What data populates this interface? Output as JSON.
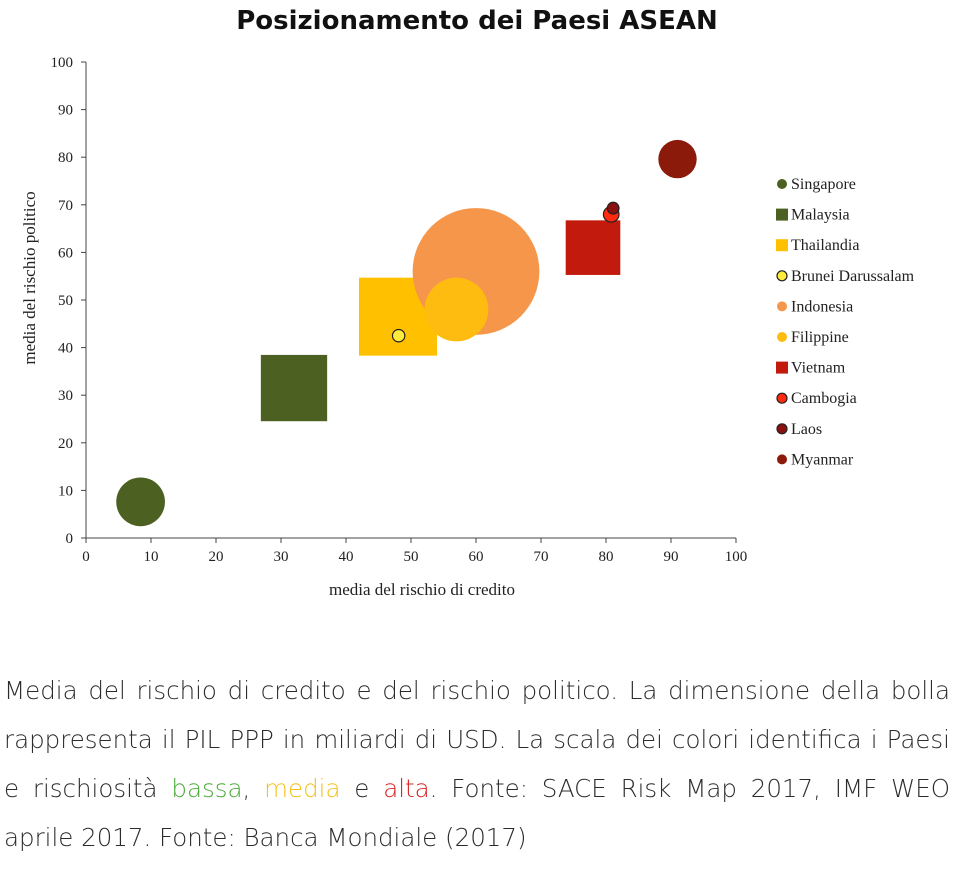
{
  "chart_data": {
    "type": "scatter",
    "title": "Posizionamento dei Paesi ASEAN",
    "xlabel": "media del rischio di credito",
    "ylabel": "media del rischio politico",
    "xlim": [
      0,
      100
    ],
    "ylim": [
      0,
      100
    ],
    "xticks": [
      "0",
      "10",
      "20",
      "30",
      "40",
      "50",
      "60",
      "70",
      "80",
      "90",
      "100"
    ],
    "yticks": [
      "0",
      "10",
      "20",
      "30",
      "40",
      "50",
      "60",
      "70",
      "80",
      "90",
      "100"
    ],
    "legend_position": "right",
    "series": [
      {
        "name": "Singapore",
        "x": 8.4,
        "y": 7.6,
        "size": 0.075,
        "shape": "circle",
        "color": "#4c6121"
      },
      {
        "name": "Malaysia",
        "x": 32,
        "y": 31.5,
        "size": 0.102,
        "shape": "square",
        "color": "#4c6121"
      },
      {
        "name": "Thailandia",
        "x": 48,
        "y": 46.5,
        "size": 0.12,
        "shape": "square",
        "color": "#ffc000"
      },
      {
        "name": "Brunei Darussalam",
        "x": 48.1,
        "y": 42.5,
        "size": 0.019,
        "shape": "circle",
        "color": "#ffeb3b"
      },
      {
        "name": "Indonesia",
        "x": 60,
        "y": 56,
        "size": 0.195,
        "shape": "circle",
        "color": "#f5964a"
      },
      {
        "name": "Filippine",
        "x": 57,
        "y": 48,
        "size": 0.098,
        "shape": "circle",
        "color": "#ffbc10"
      },
      {
        "name": "Vietnam",
        "x": 78,
        "y": 61,
        "size": 0.084,
        "shape": "square",
        "color": "#c21a0c"
      },
      {
        "name": "Cambogia",
        "x": 80.8,
        "y": 68,
        "size": 0.024,
        "shape": "circle",
        "color": "#ff2a10"
      },
      {
        "name": "Laos",
        "x": 81.1,
        "y": 69.3,
        "size": 0.018,
        "shape": "circle",
        "color": "#8b1010"
      },
      {
        "name": "Myanmar",
        "x": 91,
        "y": 79.6,
        "size": 0.059,
        "shape": "circle",
        "color": "#8b1a0a"
      }
    ]
  },
  "caption": {
    "text_1": "Media del rischio di credito e del rischio politico. La dimensione della bolla rappresenta il PIL PPP in miliardi di USD. La scala dei colori identifica i Paesi e rischiosità ",
    "low": "bassa",
    "sep_1": ", ",
    "mid": "media",
    "sep_2": " e ",
    "high": "alta",
    "text_2": ". Fonte: SACE Risk Map 2017, IMF WEO aprile 2017. Fonte: Banca Mondiale (2017)"
  }
}
